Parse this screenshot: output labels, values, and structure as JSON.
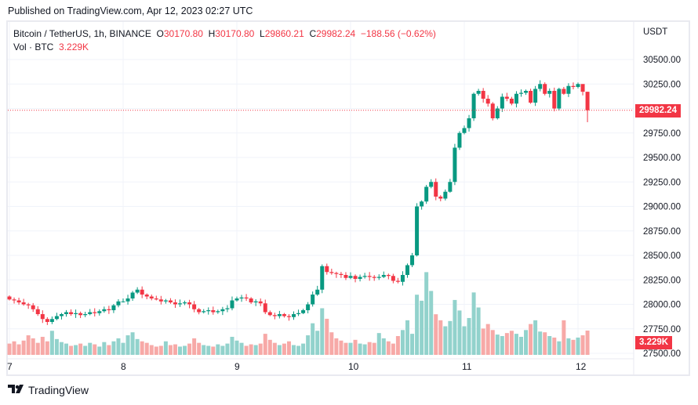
{
  "header": {
    "published": "Published on TradingView.com, Apr 12, 2023 02:27 UTC"
  },
  "legend": {
    "symbol": "Bitcoin / TetherUS, 1h, BINANCE",
    "o_label": "O",
    "o": "30170.80",
    "h_label": "H",
    "h": "30170.80",
    "l_label": "L",
    "l": "29860.21",
    "c_label": "C",
    "c": "29982.24",
    "change": "−188.56 (−0.62%)",
    "vol_label": "Vol · BTC",
    "vol": "3.229K"
  },
  "currency": "USDT",
  "last_price_tag": "29982.24",
  "last_volume_tag": "3.229K",
  "footer": {
    "brand": "TradingView"
  },
  "colors": {
    "up": "#089981",
    "down": "#f23645",
    "vol_up": "#92d2cc",
    "vol_down": "#f7a9a7"
  },
  "chart_data": {
    "type": "candlestick",
    "interval": "1h",
    "ylim": [
      27375,
      30750
    ],
    "y_ticks": [
      27500,
      27750,
      28000,
      28250,
      28500,
      28750,
      29000,
      29250,
      29500,
      29750,
      30000,
      30250,
      30500
    ],
    "y_tick_labels": [
      "27500.00",
      "27750.00",
      "28000.00",
      "28250.00",
      "28500.00",
      "28750.00",
      "29000.00",
      "29250.00",
      "29500.00",
      "29750.00",
      "",
      "30250.00",
      "30500.00"
    ],
    "x_labels": [
      "7",
      "8",
      "9",
      "10",
      "11",
      "12"
    ],
    "first_open": 28080,
    "close": [
      28050,
      28040,
      28020,
      28000,
      27990,
      27950,
      27900,
      27850,
      27820,
      27850,
      27880,
      27900,
      27920,
      27900,
      27910,
      27890,
      27900,
      27920,
      27910,
      27930,
      27950,
      27940,
      27990,
      28030,
      28030,
      28060,
      28120,
      28150,
      28100,
      28080,
      28060,
      28050,
      28030,
      28040,
      28020,
      28000,
      28010,
      28020,
      28000,
      27950,
      27920,
      27930,
      27940,
      27920,
      27930,
      27950,
      27960,
      28040,
      28060,
      28070,
      28060,
      28020,
      28030,
      28010,
      27920,
      27890,
      27880,
      27900,
      27880,
      27870,
      27900,
      27910,
      27940,
      28000,
      28100,
      28150,
      28390,
      28330,
      28320,
      28310,
      28300,
      28270,
      28290,
      28260,
      28280,
      28290,
      28280,
      28270,
      28280,
      28300,
      28290,
      28240,
      28230,
      28300,
      28400,
      28500,
      29000,
      29050,
      29200,
      29250,
      29100,
      29080,
      29150,
      29250,
      29600,
      29750,
      29800,
      29900,
      30150,
      30180,
      30100,
      30050,
      29900,
      30000,
      30120,
      30100,
      30050,
      30150,
      30160,
      30180,
      30060,
      30200,
      30250,
      30150,
      30180,
      30000,
      30200,
      30150,
      30230,
      30220,
      30250,
      30170.8,
      29982.24
    ],
    "volume_k": [
      1.5,
      1.8,
      1.4,
      1.9,
      2.6,
      2.2,
      1.6,
      2.4,
      1.8,
      3.2,
      2.1,
      1.7,
      1.5,
      1.2,
      1.3,
      1.5,
      1.2,
      1.6,
      1.4,
      1.1,
      1.7,
      1.3,
      1.8,
      2.2,
      1.6,
      2.6,
      3.0,
      2.1,
      1.8,
      1.6,
      1.3,
      1.1,
      1.2,
      1.8,
      1.3,
      1.4,
      1.1,
      1.2,
      1.5,
      2.2,
      1.6,
      1.3,
      1.2,
      1.1,
      1.4,
      1.2,
      1.5,
      2.4,
      1.9,
      1.6,
      1.2,
      1.4,
      1.3,
      1.5,
      2.8,
      2.0,
      1.6,
      1.3,
      1.5,
      1.8,
      1.3,
      1.2,
      1.5,
      2.6,
      4.2,
      3.2,
      6.2,
      4.8,
      3.0,
      2.2,
      1.9,
      1.6,
      1.6,
      2.0,
      1.5,
      1.4,
      1.7,
      1.6,
      2.9,
      2.2,
      1.8,
      1.5,
      2.5,
      3.3,
      4.6,
      2.8,
      8.0,
      7.2,
      11.0,
      8.5,
      5.4,
      4.6,
      3.8,
      4.5,
      7.3,
      5.9,
      3.8,
      4.9,
      8.3,
      6.3,
      3.5,
      4.1,
      3.3,
      2.7,
      2.5,
      2.9,
      3.2,
      2.8,
      2.4,
      3.3,
      4.1,
      4.6,
      3.1,
      3.0,
      2.5,
      2.3,
      1.8,
      4.6,
      2.2,
      2.0,
      2.3,
      2.6,
      3.229
    ]
  }
}
